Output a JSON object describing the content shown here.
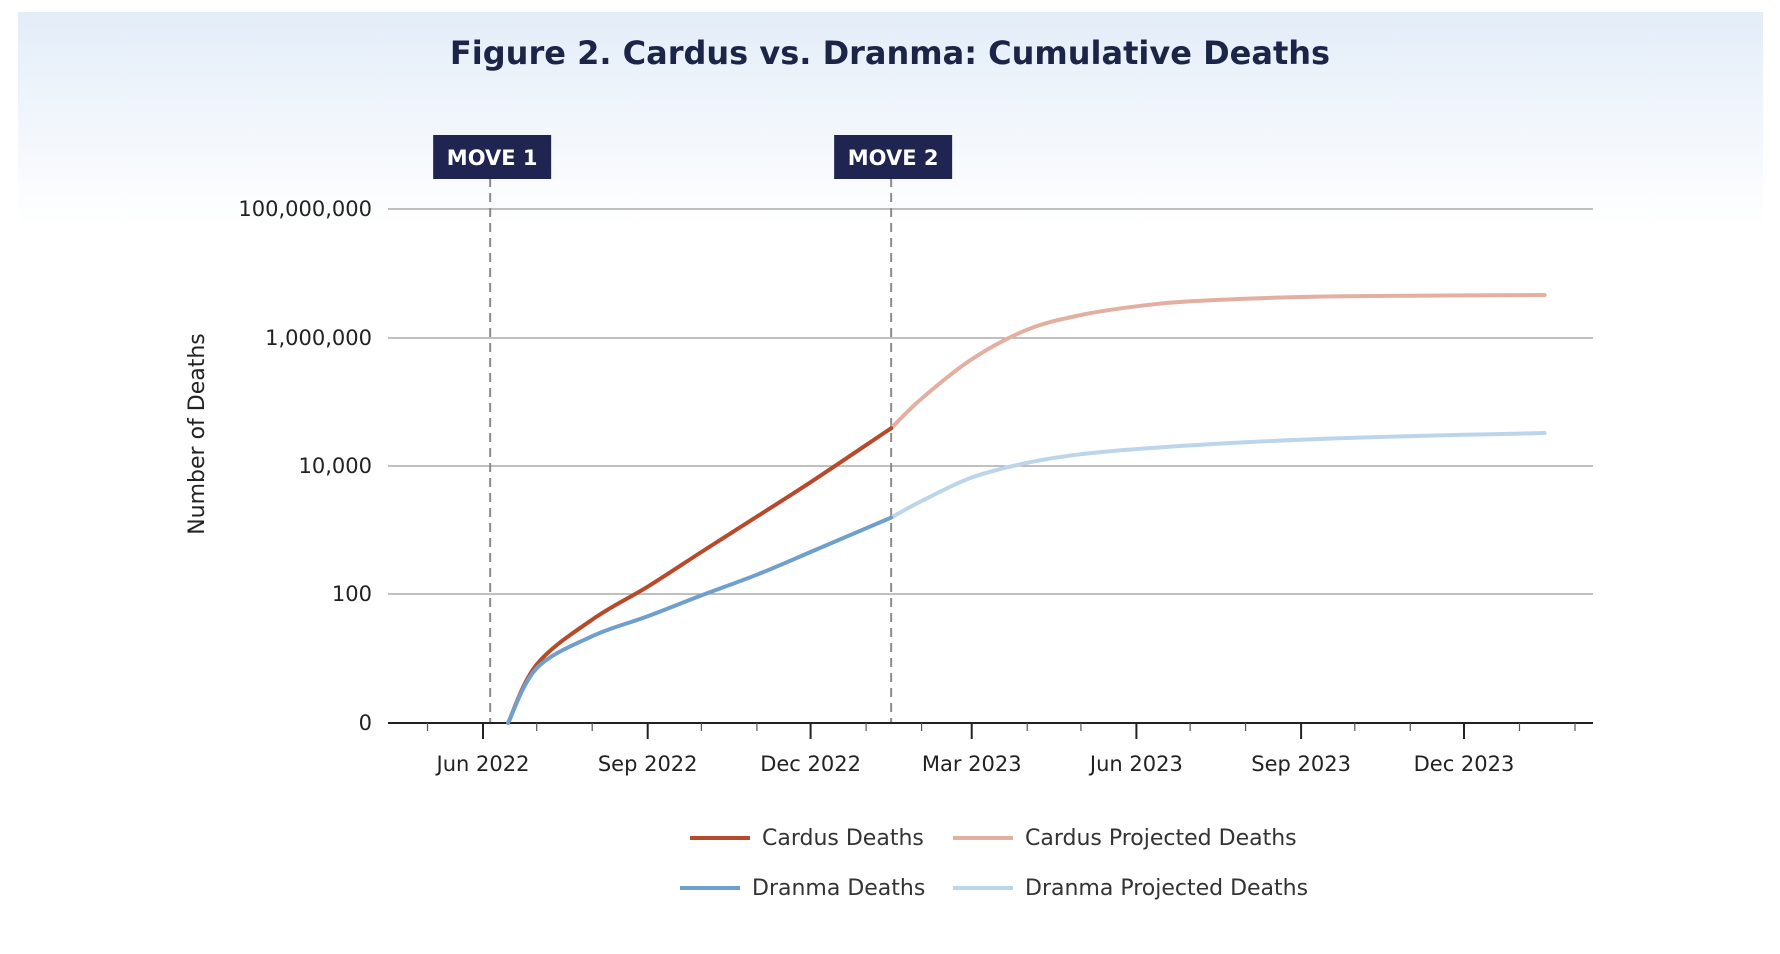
{
  "title": "Figure 2. Cardus vs. Dranma: Cumulative Deaths",
  "chart_data": {
    "type": "line",
    "title": "Figure 2. Cardus vs. Dranma: Cumulative Deaths",
    "xlabel": "",
    "ylabel": "Number of Deaths",
    "y_scale": "log",
    "y_ticks": [
      {
        "value": 0,
        "label": "0"
      },
      {
        "value": 100,
        "label": "100"
      },
      {
        "value": 10000,
        "label": "10,000"
      },
      {
        "value": 1000000,
        "label": "1,000,000"
      },
      {
        "value": 100000000,
        "label": "100,000,000"
      }
    ],
    "x_ticks": [
      {
        "value": "2022-06-01",
        "label": "Jun 2022"
      },
      {
        "value": "2022-09-01",
        "label": "Sep 2022"
      },
      {
        "value": "2022-12-01",
        "label": "Dec 2022"
      },
      {
        "value": "2023-03-01",
        "label": "Mar 2023"
      },
      {
        "value": "2023-06-01",
        "label": "Jun 2023"
      },
      {
        "value": "2023-09-01",
        "label": "Sep 2023"
      },
      {
        "value": "2023-12-01",
        "label": "Dec 2023"
      }
    ],
    "xlim": [
      "2022-05-01",
      "2024-02-01"
    ],
    "grid": "horizontal",
    "legend": "bottom-center",
    "events": [
      {
        "label": "MOVE 1",
        "date": "2022-06-05"
      },
      {
        "label": "MOVE 2",
        "date": "2023-01-15"
      }
    ],
    "series": [
      {
        "name": "Cardus Deaths",
        "color": "#b8492a",
        "x": [
          "2022-06-15",
          "2022-07-01",
          "2022-08-01",
          "2022-09-01",
          "2022-10-01",
          "2022-11-01",
          "2022-12-01",
          "2023-01-15"
        ],
        "y": [
          1,
          8,
          40,
          130,
          450,
          1600,
          5500,
          38000
        ]
      },
      {
        "name": "Cardus Projected Deaths",
        "color": "#e3afa1",
        "x": [
          "2023-01-15",
          "2023-02-01",
          "2023-03-01",
          "2023-04-01",
          "2023-05-01",
          "2023-06-01",
          "2023-07-01",
          "2023-09-01",
          "2023-11-01",
          "2024-01-15"
        ],
        "y": [
          38000,
          110000,
          450000,
          1300000,
          2200000,
          3000000,
          3600000,
          4200000,
          4400000,
          4500000
        ]
      },
      {
        "name": "Dranma Deaths",
        "color": "#6fa0cc",
        "x": [
          "2022-06-15",
          "2022-07-01",
          "2022-08-01",
          "2022-09-01",
          "2022-10-01",
          "2022-11-01",
          "2022-12-01",
          "2023-01-15"
        ],
        "y": [
          1,
          7,
          22,
          45,
          95,
          200,
          450,
          1550
        ]
      },
      {
        "name": "Dranma Projected Deaths",
        "color": "#bcd5ea",
        "x": [
          "2023-01-15",
          "2023-02-01",
          "2023-03-01",
          "2023-04-01",
          "2023-05-01",
          "2023-06-01",
          "2023-08-01",
          "2023-10-01",
          "2023-12-01",
          "2024-01-15"
        ],
        "y": [
          1550,
          2800,
          6500,
          11000,
          15000,
          18000,
          23000,
          27000,
          30000,
          32000
        ]
      }
    ]
  }
}
